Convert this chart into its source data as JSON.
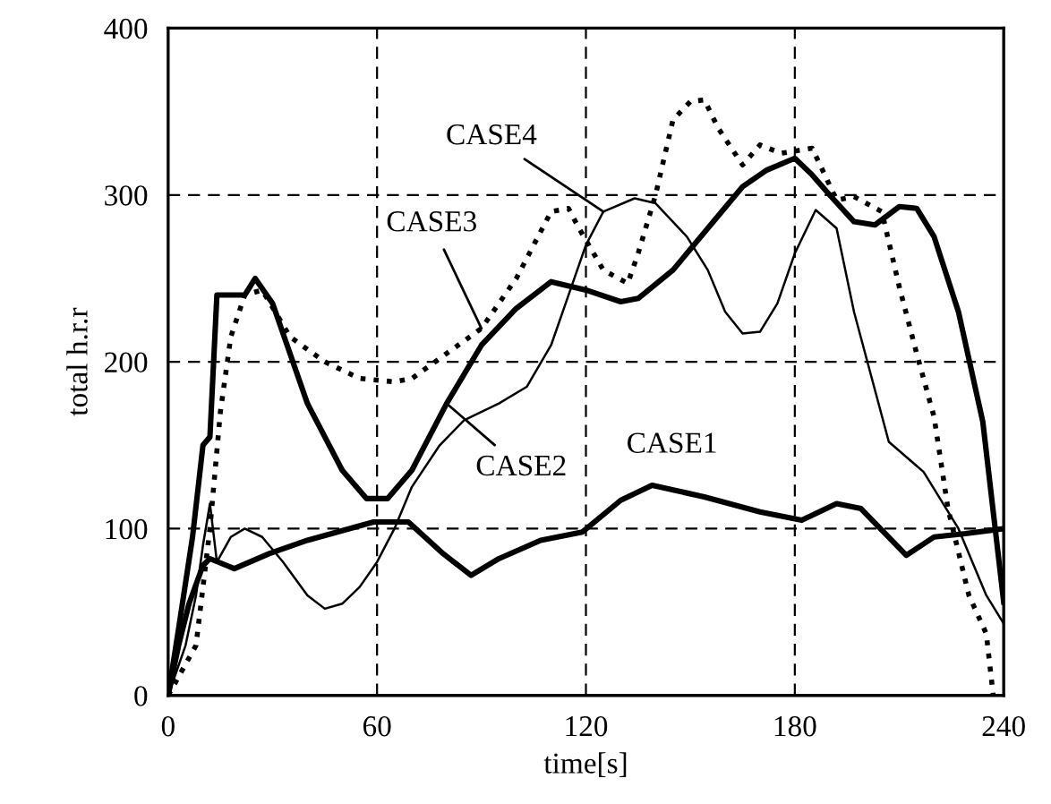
{
  "chart_data": {
    "type": "line",
    "xlabel": "time[s]",
    "ylabel": "total h.r.r",
    "xlim": [
      0,
      240
    ],
    "ylim": [
      0,
      400
    ],
    "xticks": [
      0,
      60,
      120,
      180,
      240
    ],
    "yticks": [
      0,
      100,
      200,
      300,
      400
    ],
    "grid": true,
    "series": [
      {
        "name": "CASE1",
        "color": "#000000",
        "line_style": "solid",
        "x": [
          0,
          3,
          6,
          10,
          12,
          19,
          29,
          40,
          59,
          69,
          79,
          87,
          95,
          107,
          119,
          130,
          139,
          154,
          170,
          182,
          192,
          199,
          212,
          220,
          229,
          240
        ],
        "values": [
          0,
          30,
          55,
          78,
          82,
          76,
          85,
          93,
          104,
          104,
          85,
          72,
          82,
          93,
          98,
          117,
          126,
          119,
          110,
          105,
          115,
          112,
          84,
          95,
          97,
          100
        ]
      },
      {
        "name": "CASE2",
        "color": "#000000",
        "line_style": "solid",
        "x": [
          0,
          3,
          7,
          10,
          12,
          14,
          22,
          25,
          30,
          40,
          50,
          57,
          63,
          70,
          80,
          90,
          100,
          110,
          120,
          130,
          135,
          145,
          155,
          165,
          172,
          180,
          185,
          190,
          197,
          203,
          210,
          215,
          220,
          227,
          234,
          240
        ],
        "values": [
          0,
          40,
          95,
          150,
          155,
          240,
          240,
          250,
          235,
          175,
          135,
          118,
          118,
          135,
          175,
          210,
          232,
          248,
          243,
          236,
          238,
          255,
          280,
          305,
          315,
          322,
          312,
          300,
          284,
          282,
          293,
          292,
          275,
          230,
          164,
          56
        ]
      },
      {
        "name": "CASE3",
        "color": "#000000",
        "line_style": "dotted",
        "x": [
          0,
          8,
          12,
          15,
          18,
          22,
          27,
          35,
          45,
          55,
          65,
          70,
          80,
          90,
          100,
          105,
          110,
          115,
          118,
          125,
          132,
          135,
          140,
          145,
          150,
          154,
          158,
          165,
          170,
          176,
          185,
          192,
          197,
          205,
          210,
          215,
          220,
          224,
          230,
          235,
          237
        ],
        "values": [
          0,
          30,
          100,
          170,
          215,
          240,
          243,
          215,
          200,
          190,
          188,
          190,
          205,
          220,
          250,
          270,
          290,
          292,
          280,
          255,
          247,
          265,
          300,
          345,
          356,
          357,
          340,
          318,
          330,
          325,
          328,
          297,
          299,
          290,
          245,
          205,
          167,
          112,
          60,
          37,
          0
        ]
      },
      {
        "name": "CASE4",
        "color": "#000000",
        "line_style": "solid",
        "x": [
          0,
          5,
          8,
          10,
          12,
          14,
          18,
          22,
          27,
          33,
          40,
          45,
          50,
          55,
          60,
          65,
          70,
          78,
          85,
          95,
          103,
          110,
          115,
          120,
          125,
          134,
          140,
          149,
          155,
          160,
          165,
          170,
          175,
          180,
          186,
          192,
          197,
          207,
          217,
          227,
          235,
          240
        ],
        "values": [
          0,
          30,
          60,
          90,
          115,
          80,
          95,
          100,
          95,
          80,
          60,
          52,
          55,
          65,
          80,
          100,
          125,
          150,
          165,
          175,
          185,
          210,
          240,
          270,
          290,
          298,
          295,
          275,
          255,
          230,
          217,
          218,
          235,
          265,
          291,
          280,
          230,
          152,
          134,
          100,
          60,
          43
        ]
      }
    ]
  }
}
